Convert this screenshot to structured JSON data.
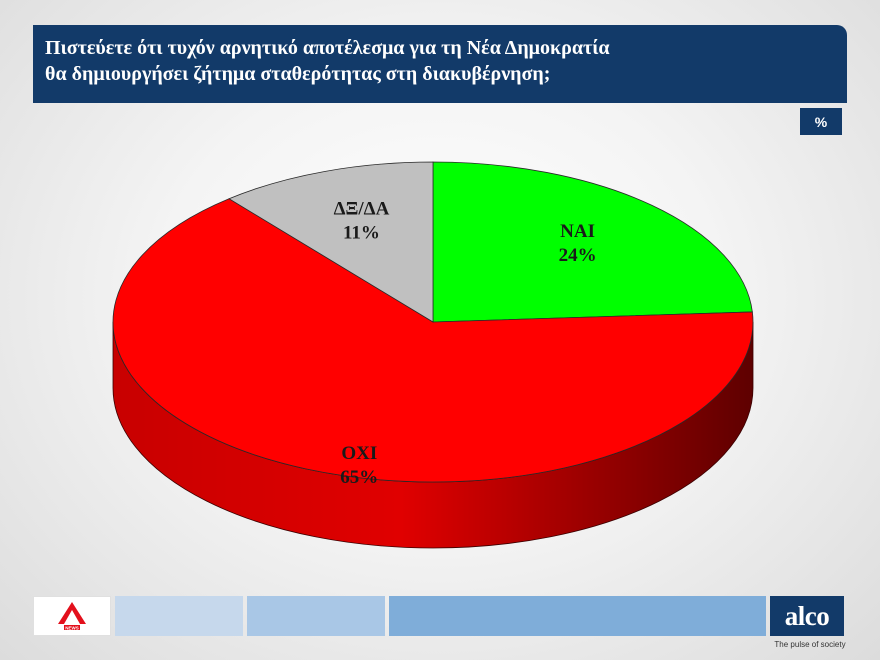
{
  "header": {
    "title_line1": "Πιστεύετε ότι τυχόν αρνητικό αποτέλεσμα για τη Νέα Δημοκρατία",
    "title_line2": "θα δημιουργήσει ζήτημα  σταθερότητας στη διακυβέρνηση;"
  },
  "unit_label": "%",
  "chart_data": {
    "type": "pie",
    "title": "Πιστεύετε ότι τυχόν αρνητικό αποτέλεσμα για τη Νέα Δημοκρατία θα δημιουργήσει ζήτημα  σταθερότητας στη διακυβέρνηση;",
    "unit": "%",
    "style": "3d",
    "slices": [
      {
        "label": "ΝΑΙ",
        "value": 24,
        "display": "24%",
        "color": "#00ff00"
      },
      {
        "label": "ΟΧΙ",
        "value": 65,
        "display": "65%",
        "color": "#ff0000"
      },
      {
        "label": "ΔΞ/ΔΑ",
        "value": 11,
        "display": "11%",
        "color": "#c0c0c0"
      }
    ]
  },
  "footer": {
    "brand_logo": "alpha-news-logo",
    "alco_logo_text": "alco",
    "alco_tagline": "The pulse of society"
  }
}
